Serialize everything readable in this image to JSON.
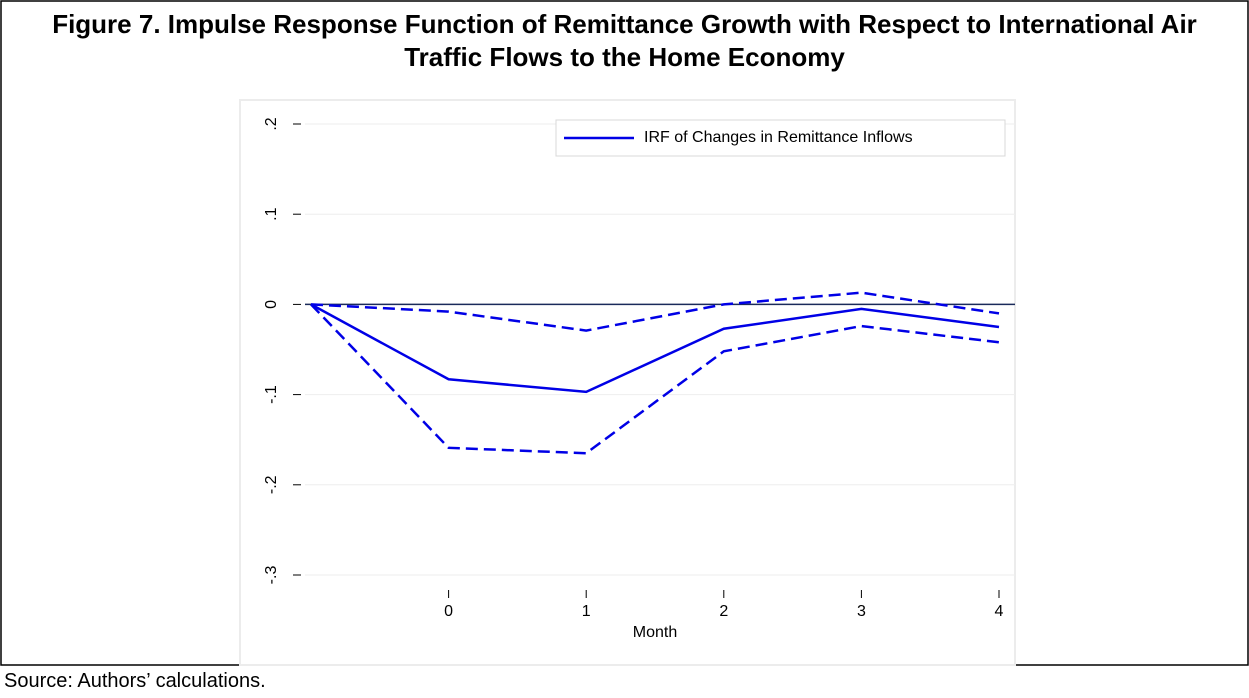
{
  "chart_data": {
    "type": "line",
    "title": "Figure 7. Impulse Response Function of Remittance Growth with Respect to International Air Traffic Flows to the Home Economy",
    "x_label": "Month",
    "x": [
      -1,
      0,
      1,
      2,
      3,
      4
    ],
    "series": [
      {
        "name": "IRF of Changes in Remittance Inflows",
        "color": "#0000e6",
        "style": "solid",
        "values": [
          0,
          -0.083,
          -0.097,
          -0.027,
          -0.005,
          -0.025
        ]
      },
      {
        "color": "#0000e6",
        "style": "dashed",
        "values": [
          0,
          -0.008,
          -0.029,
          0,
          0.013,
          -0.01
        ]
      },
      {
        "color": "#0000e6",
        "style": "dashed",
        "values": [
          0,
          -0.159,
          -0.165,
          -0.052,
          -0.024,
          -0.042
        ]
      }
    ],
    "xlim": [
      -1,
      4
    ],
    "xticks": [
      0,
      1,
      2,
      3,
      4
    ],
    "ylim": [
      -0.3,
      0.2
    ],
    "yticks": [
      {
        "value": -0.3,
        "label": "-.3"
      },
      {
        "value": -0.2,
        "label": "-.2"
      },
      {
        "value": -0.1,
        "label": "-.1"
      },
      0,
      {
        "value": 0.1,
        "label": ".1"
      },
      {
        "value": 0.2,
        "label": ".2"
      }
    ],
    "reference_line": 0,
    "grid": true,
    "legend_position": "top-right"
  },
  "source": "Source: Authors’ calculations."
}
